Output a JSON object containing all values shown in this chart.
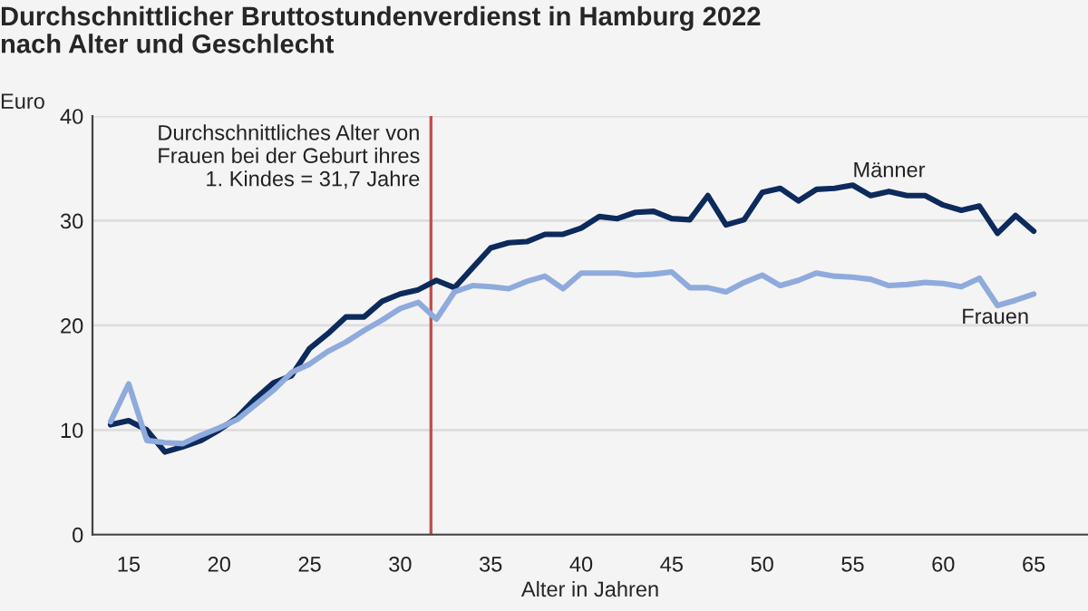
{
  "chart_data": {
    "type": "line",
    "title": "Durchschnittlicher Bruttostundenverdienst in Hamburg 2022\nnach Alter und Geschlecht",
    "ylabel": "Euro",
    "xlabel": "Alter in Jahren",
    "x": [
      14,
      15,
      16,
      17,
      18,
      19,
      20,
      21,
      22,
      23,
      24,
      25,
      26,
      27,
      28,
      29,
      30,
      31,
      32,
      33,
      34,
      35,
      36,
      37,
      38,
      39,
      40,
      41,
      42,
      43,
      44,
      45,
      46,
      47,
      48,
      49,
      50,
      51,
      52,
      53,
      54,
      55,
      56,
      57,
      58,
      59,
      60,
      61,
      62,
      63,
      64,
      65
    ],
    "series": [
      {
        "name": "Männer",
        "color": "#0d2a5c",
        "values": [
          10.5,
          10.9,
          10.0,
          7.9,
          8.4,
          9.0,
          10.0,
          11.2,
          13.0,
          14.5,
          15.2,
          17.8,
          19.2,
          20.8,
          20.8,
          22.3,
          23.0,
          23.4,
          24.3,
          23.6,
          25.5,
          27.4,
          27.9,
          28.0,
          28.7,
          28.7,
          29.3,
          30.4,
          30.2,
          30.8,
          30.9,
          30.2,
          30.1,
          32.4,
          29.6,
          30.1,
          32.7,
          33.1,
          31.9,
          33.0,
          33.1,
          33.4,
          32.4,
          32.8,
          32.4,
          32.4,
          31.5,
          31.0,
          31.4,
          28.8,
          30.5,
          29.0
        ]
      },
      {
        "name": "Frauen",
        "color": "#8faadc",
        "values": [
          10.8,
          14.4,
          9.0,
          8.8,
          8.7,
          9.5,
          10.2,
          11.0,
          12.4,
          13.8,
          15.5,
          16.3,
          17.5,
          18.4,
          19.5,
          20.5,
          21.6,
          22.2,
          20.6,
          23.2,
          23.8,
          23.7,
          23.5,
          24.2,
          24.7,
          23.5,
          25.0,
          25.0,
          25.0,
          24.8,
          24.9,
          25.1,
          23.6,
          23.6,
          23.2,
          24.1,
          24.8,
          23.8,
          24.3,
          25.0,
          24.7,
          24.6,
          24.4,
          23.8,
          23.9,
          24.1,
          24.0,
          23.7,
          24.5,
          21.9,
          22.4,
          23.0
        ]
      }
    ],
    "ref_lines": [
      {
        "axis": "x",
        "value": 31.7,
        "label": "Durchschnittliches Alter von\nFrauen bei der Geburt ihres\n1. Kindes = 31,7 Jahre",
        "color": "#c0504d"
      }
    ],
    "xlim": [
      13,
      68
    ],
    "xticks": [
      15,
      20,
      25,
      30,
      35,
      40,
      45,
      50,
      55,
      60,
      65
    ],
    "ylim": [
      0,
      40
    ],
    "yticks": [
      0,
      10,
      20,
      30,
      40
    ],
    "grid": "y",
    "legend": false,
    "marker": "none",
    "line_style": "solid"
  }
}
